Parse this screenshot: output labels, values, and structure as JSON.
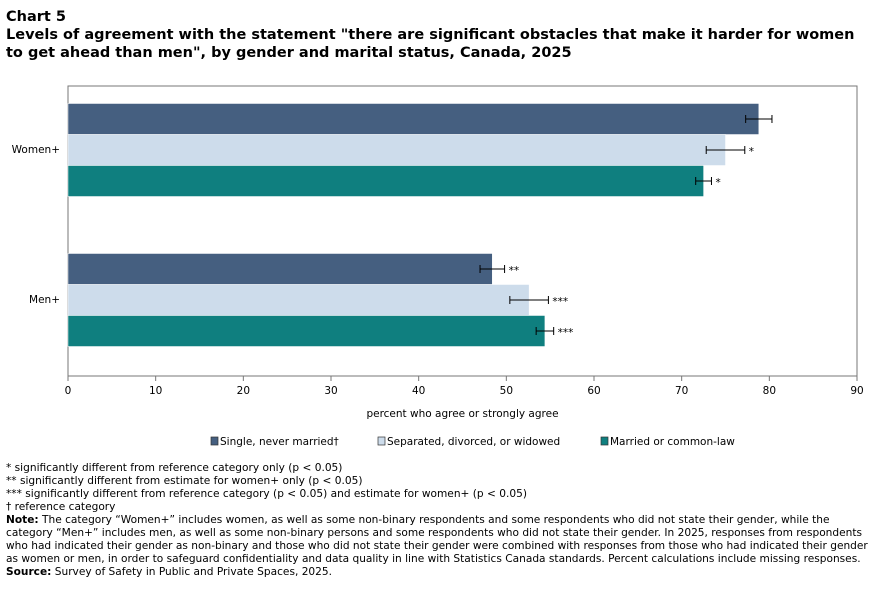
{
  "chart_data": {
    "type": "bar",
    "orientation": "horizontal",
    "chart_label": "Chart 5",
    "title": "Levels of agreement with the statement \"there are significant  obstacles that make it harder for women to get ahead than men\", by gender and marital status, Canada, 2025",
    "categories": [
      "Women+",
      "Men+"
    ],
    "series": [
      {
        "name": "Single, never married†",
        "color": "#455f80",
        "values": [
          78.8,
          48.4
        ],
        "errors": [
          1.5,
          1.4
        ],
        "markers": [
          null,
          "**"
        ]
      },
      {
        "name": "Separated, divorced, or widowed",
        "color": "#cddceb",
        "values": [
          75.0,
          52.6
        ],
        "errors": [
          2.2,
          2.2
        ],
        "markers": [
          "*",
          "***"
        ]
      },
      {
        "name": "Married or common-law",
        "color": "#0f7f7f",
        "values": [
          72.5,
          54.4
        ],
        "errors": [
          0.9,
          1.0
        ],
        "markers": [
          "*",
          "***"
        ]
      }
    ],
    "xlabel": "percent who agree or strongly agree",
    "xlim": [
      0,
      90
    ],
    "xticks": [
      0,
      10,
      20,
      30,
      40,
      50,
      60,
      70,
      80,
      90
    ],
    "grid": false,
    "legend": "bottom",
    "notes": [
      "* significantly different from reference category only (p < 0.05)",
      "** significantly different from estimate for women+ only (p < 0.05)",
      "*** significantly different from reference category (p < 0.05) and estimate for women+ (p < 0.05)",
      "† reference category"
    ],
    "note_label": "Note:",
    "note_text": "The category “Women+” includes women, as well as some non-binary respondents and some respondents who did not state their gender, while the category “Men+” includes men, as well as some non-binary persons and some respondents who did not state their gender. In 2025, responses from respondents who had indicated their gender as non-binary and those who did not state their gender were combined with responses from those who had indicated their gender as women or men, in order to safeguard confidentiality and data quality in line with Statistics Canada standards. Percent calculations include missing responses.",
    "source_label": "Source:",
    "source_text": "Survey of Safety in Public and Private Spaces, 2025."
  }
}
